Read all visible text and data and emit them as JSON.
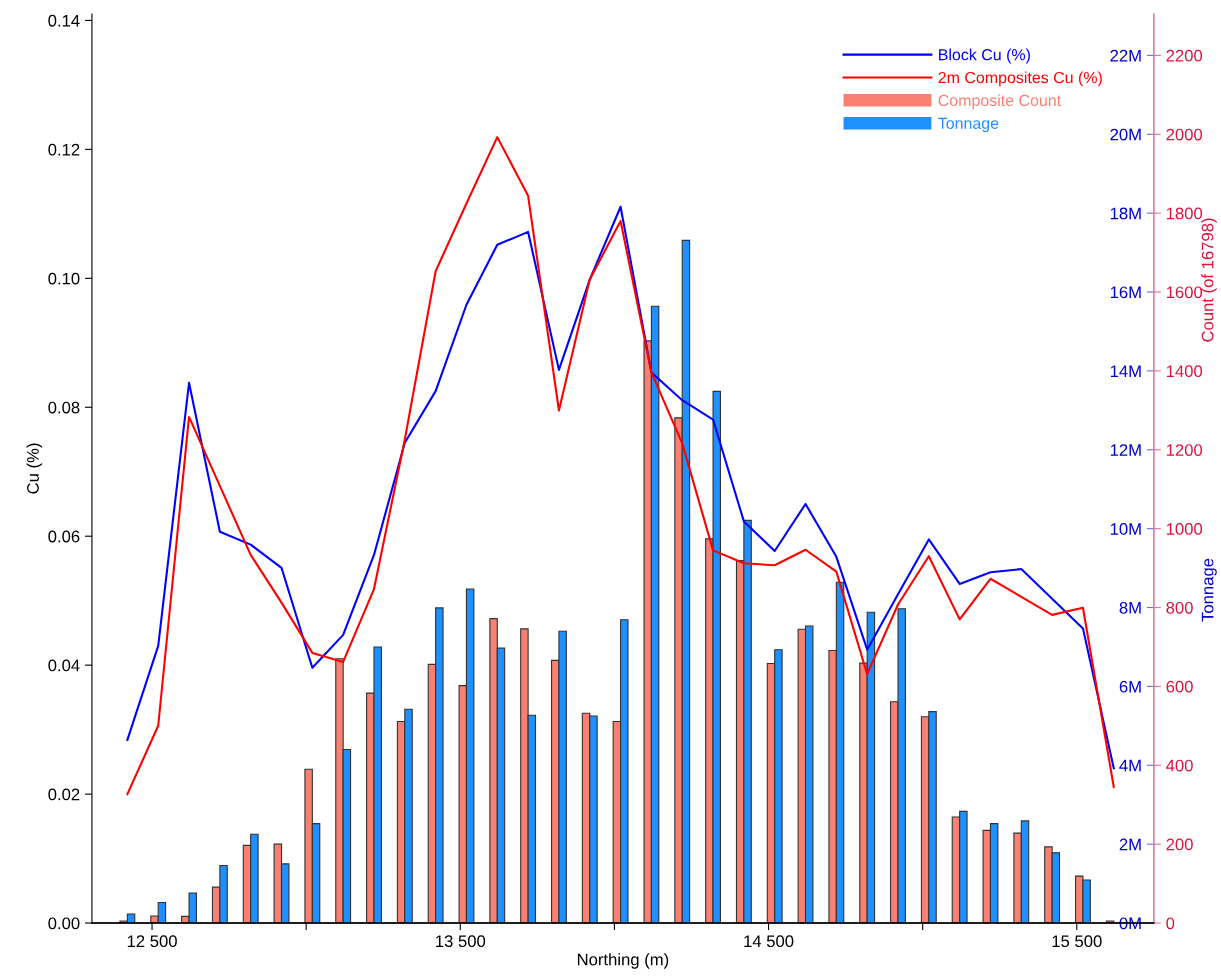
{
  "chart_data": {
    "type": "line",
    "xlabel": "Northing (m)",
    "ylabel": "Cu (%)",
    "y2label": "Count (of 16798)",
    "y3label": "Tonnage",
    "x": [
      12420,
      12520,
      12620,
      12720,
      12820,
      12920,
      13020,
      13120,
      13220,
      13320,
      13420,
      13520,
      13620,
      13720,
      13820,
      13920,
      14020,
      14120,
      14220,
      14320,
      14420,
      14520,
      14620,
      14720,
      14820,
      14920,
      15020,
      15120,
      15220,
      15320,
      15420,
      15520,
      15620
    ],
    "series": [
      {
        "name": "Block Cu (%)",
        "color": "#0000ff",
        "values": [
          0.0284,
          0.043,
          0.0838,
          0.0607,
          0.0587,
          0.0551,
          0.0396,
          0.0447,
          0.0571,
          0.0745,
          0.0825,
          0.0959,
          0.1052,
          0.1072,
          0.0858,
          0.0998,
          0.1111,
          0.0854,
          0.0811,
          0.0781,
          0.0623,
          0.0577,
          0.065,
          0.0568,
          0.0424,
          0.051,
          0.0595,
          0.0526,
          0.0544,
          0.0549,
          0.0503,
          0.0457,
          0.024
        ]
      },
      {
        "name": "2m Composites Cu (%)",
        "color": "#ff0000",
        "values": [
          0.02,
          0.0306,
          0.0785,
          0.0678,
          0.0571,
          0.0497,
          0.0419,
          0.0405,
          0.0518,
          0.075,
          0.1011,
          0.1116,
          0.1219,
          0.1128,
          0.0795,
          0.0998,
          0.1089,
          0.0854,
          0.0744,
          0.0578,
          0.0558,
          0.0555,
          0.0579,
          0.0545,
          0.0386,
          0.0494,
          0.0569,
          0.0471,
          0.0534,
          0.0506,
          0.0478,
          0.0489,
          0.0211
        ]
      },
      {
        "name": "Composite Count",
        "type": "bar",
        "axis": "y2",
        "color": "#fa8072",
        "values": [
          5,
          18,
          17,
          91,
          197,
          200,
          390,
          670,
          583,
          511,
          656,
          602,
          772,
          746,
          666,
          532,
          511,
          1476,
          1281,
          974,
          919,
          658,
          745,
          691,
          659,
          561,
          523,
          269,
          235,
          228,
          193,
          119,
          5
        ]
      },
      {
        "name": "Tonnage",
        "type": "bar",
        "axis": "y3",
        "color": "#1e90ff",
        "values": [
          0.23,
          0.52,
          0.76,
          1.46,
          2.25,
          1.5,
          2.52,
          4.4,
          7.0,
          5.42,
          7.99,
          8.47,
          6.97,
          5.27,
          7.4,
          5.25,
          7.69,
          15.64,
          17.31,
          13.48,
          10.21,
          6.93,
          7.53,
          8.64,
          7.88,
          7.97,
          5.36,
          2.83,
          2.52,
          2.59,
          1.78,
          1.09,
          null
        ]
      }
    ],
    "xlim": [
      12305,
      15750
    ],
    "xticks": [
      {
        "value": 12500,
        "label": "12 500"
      },
      {
        "value": 13000,
        "label": null
      },
      {
        "value": 13500,
        "label": "13 500"
      },
      {
        "value": 14000,
        "label": null
      },
      {
        "value": 14500,
        "label": "14 500"
      },
      {
        "value": 15000,
        "label": null
      },
      {
        "value": 15500,
        "label": "15 500"
      }
    ],
    "ylim": [
      0,
      0.141
    ],
    "yticks": [
      {
        "value": 0,
        "label": "0.00"
      },
      {
        "value": 0.02,
        "label": "0.02"
      },
      {
        "value": 0.04,
        "label": "0.04"
      },
      {
        "value": 0.06,
        "label": "0.06"
      },
      {
        "value": 0.08,
        "label": "0.08"
      },
      {
        "value": 0.1,
        "label": "0.10"
      },
      {
        "value": 0.12,
        "label": "0.12"
      },
      {
        "value": 0.14,
        "label": "0.14"
      }
    ],
    "y2lim": [
      0,
      2305
    ],
    "y2ticks": [
      0,
      200,
      400,
      600,
      800,
      1000,
      1200,
      1400,
      1600,
      1800,
      2000,
      2200
    ],
    "y3lim": [
      0,
      23.05
    ],
    "y3ticks": [
      {
        "value": 0,
        "label": "0M"
      },
      {
        "value": 2,
        "label": "2M"
      },
      {
        "value": 4,
        "label": "4M"
      },
      {
        "value": 6,
        "label": "6M"
      },
      {
        "value": 8,
        "label": "8M"
      },
      {
        "value": 10,
        "label": "10M"
      },
      {
        "value": 12,
        "label": "12M"
      },
      {
        "value": 14,
        "label": "14M"
      },
      {
        "value": 16,
        "label": "16M"
      },
      {
        "value": 18,
        "label": "18M"
      },
      {
        "value": 20,
        "label": "20M"
      },
      {
        "value": 22,
        "label": "22M"
      }
    ],
    "legend": "top right",
    "grid": false,
    "marker": "none",
    "line_style": "solid"
  }
}
